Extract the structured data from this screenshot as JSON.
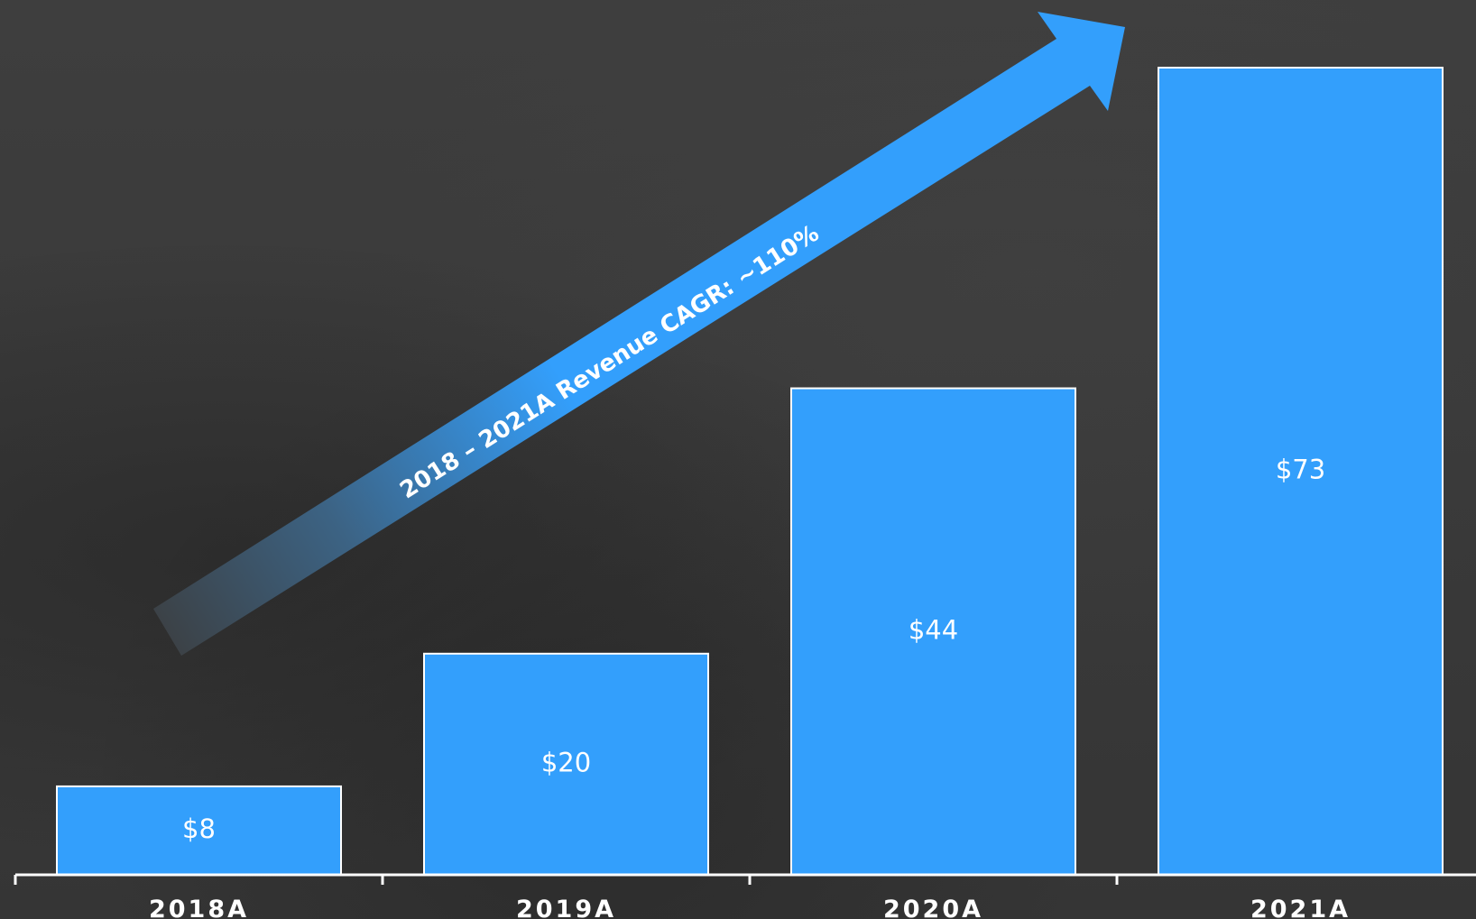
{
  "chart_data": {
    "type": "bar",
    "categories": [
      "2018A",
      "2019A",
      "2020A",
      "2021A"
    ],
    "values": [
      8,
      20,
      44,
      73
    ],
    "value_labels": [
      "$8",
      "$20",
      "$44",
      "$73"
    ],
    "annotation": "2018 – 2021A Revenue  CAGR: ~110%",
    "title": "",
    "xlabel": "",
    "ylabel": "",
    "ylim": [
      0,
      78
    ],
    "grid": false,
    "colors": {
      "bar": "#339ffc",
      "bar_outline": "#ffffff",
      "arrow": "#339ffc",
      "background": "#3a3a3a",
      "text": "#ffffff"
    }
  }
}
